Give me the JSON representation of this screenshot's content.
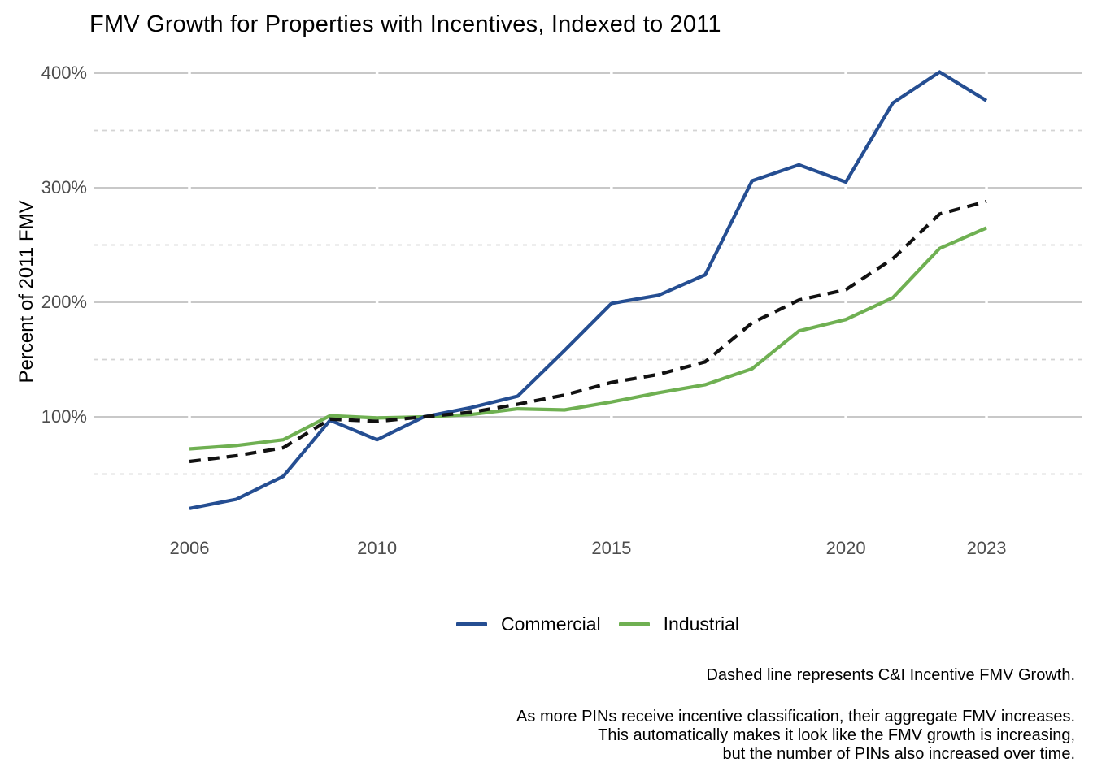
{
  "chart_data": {
    "type": "line",
    "title": "FMV Growth for Properties with Incentives, Indexed to 2011",
    "xlabel": "",
    "ylabel": "Percent of 2011 FMV",
    "x": [
      2006,
      2007,
      2008,
      2009,
      2010,
      2011,
      2012,
      2013,
      2014,
      2015,
      2016,
      2017,
      2018,
      2019,
      2020,
      2021,
      2022,
      2023
    ],
    "series": [
      {
        "name": "Commercial",
        "color": "#254E92",
        "dash": "solid",
        "values": [
          20,
          28,
          48,
          97,
          80,
          100,
          108,
          118,
          158,
          199,
          206,
          224,
          306,
          320,
          305,
          374,
          401,
          376
        ]
      },
      {
        "name": "Industrial",
        "color": "#6FB052",
        "dash": "solid",
        "values": [
          72,
          75,
          80,
          101,
          99,
          100,
          102,
          107,
          106,
          113,
          121,
          128,
          142,
          175,
          185,
          204,
          247,
          265
        ]
      },
      {
        "name": "C&I Incentive FMV Growth",
        "color": "#111111",
        "dash": "dashed",
        "values": [
          61,
          66,
          73,
          98,
          96,
          100,
          104,
          111,
          119,
          130,
          137,
          148,
          182,
          202,
          211,
          238,
          277,
          288
        ]
      }
    ],
    "x_ticks": [
      {
        "value": 2006,
        "label": "2006"
      },
      {
        "value": 2010,
        "label": "2010"
      },
      {
        "value": 2015,
        "label": "2015"
      },
      {
        "value": 2020,
        "label": "2020"
      },
      {
        "value": 2023,
        "label": "2023"
      }
    ],
    "y_ticks": [
      {
        "value": 100,
        "label": "100%"
      },
      {
        "value": 200,
        "label": "200%"
      },
      {
        "value": 300,
        "label": "300%"
      },
      {
        "value": 400,
        "label": "400%"
      }
    ],
    "y_minor": [
      50,
      150,
      250,
      350
    ],
    "ylim": [
      0,
      420
    ],
    "grid": "horizontal-major-and-minor",
    "legend_position": "bottom",
    "colors": {
      "major_grid": "#C8C8C8",
      "minor_grid": "#D4D4D4",
      "tick_text": "#4d4d4d",
      "background": "#ffffff"
    }
  },
  "legend": {
    "items": [
      {
        "label": "Commercial",
        "color": "#254E92"
      },
      {
        "label": "Industrial",
        "color": "#6FB052"
      }
    ]
  },
  "captions": {
    "dashed_note": "Dashed line represents C&I Incentive FMV Growth.",
    "footnote_lines": [
      "As more PINs receive incentive classification, their aggregate FMV increases.",
      "This automatically makes it look like the FMV growth is increasing,",
      "but the number of PINs also increased over time."
    ]
  }
}
